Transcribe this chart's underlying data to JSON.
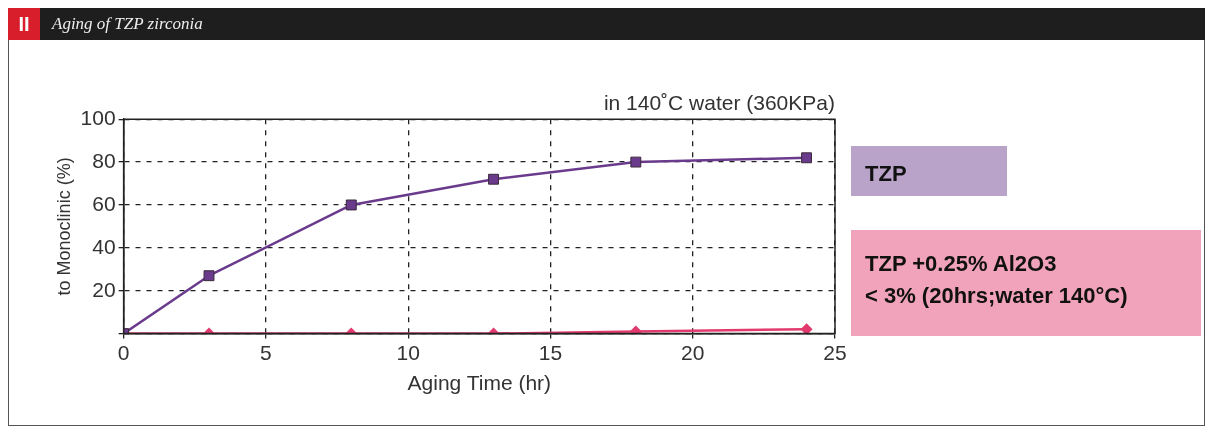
{
  "chart_data": {
    "type": "line",
    "title": "Aging of TZP zirconia",
    "subtitle": "in 140˚C water (360KPa)",
    "xlabel": "Aging Time (hr)",
    "ylabel": "to Monoclinic (%)",
    "annotations": [
      "II",
      "< 3% (20hrs;water 140°C)"
    ],
    "x": [
      0,
      3,
      8,
      13,
      18,
      24
    ],
    "series": [
      {
        "name": "TZP",
        "color": "#6a3a8c",
        "values": [
          0,
          27,
          60,
          72,
          80,
          82
        ],
        "marker": "square"
      },
      {
        "name": "TZP +0.25% Al2O3",
        "color": "#e23a6e",
        "values": [
          0,
          0,
          0,
          0,
          1,
          2
        ],
        "marker": "diamond"
      }
    ],
    "xlim": [
      0,
      25
    ],
    "xticks": [
      0,
      5,
      10,
      15,
      20,
      25
    ],
    "ylim": [
      0,
      100
    ],
    "yticks": [
      {
        "value": 0,
        "label": null
      },
      20,
      40,
      60,
      80,
      100
    ],
    "grid": true,
    "line_style": "solid",
    "legend": "right"
  }
}
